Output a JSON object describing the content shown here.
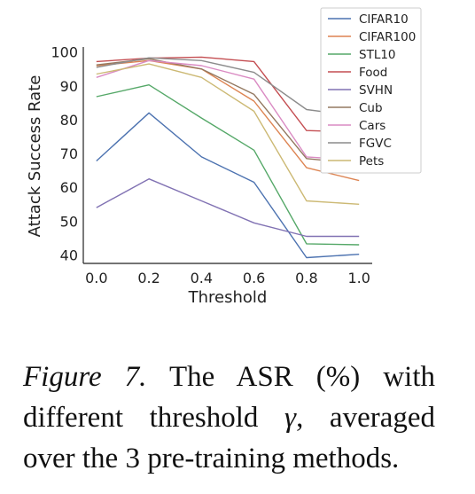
{
  "chart_data": {
    "type": "line",
    "xlabel": "Threshold",
    "ylabel": "Attack Success Rate",
    "x": [
      0.0,
      0.2,
      0.4,
      0.6,
      0.8,
      1.0
    ],
    "xticks": [
      "0.0",
      "0.2",
      "0.4",
      "0.6",
      "0.8",
      "1.0"
    ],
    "yticks": [
      "40",
      "50",
      "60",
      "70",
      "80",
      "90",
      "100"
    ],
    "xlim": [
      -0.05,
      1.05
    ],
    "ylim": [
      37.5,
      101.5
    ],
    "grid": false,
    "legend_position": "top-right",
    "series": [
      {
        "name": "CIFAR10",
        "color": "#4C72B0",
        "values": [
          67.8,
          82.0,
          69.0,
          61.5,
          39.2,
          40.2
        ]
      },
      {
        "name": "CIFAR100",
        "color": "#DD8452",
        "values": [
          96.0,
          97.5,
          95.0,
          85.5,
          65.8,
          62.0
        ]
      },
      {
        "name": "STL10",
        "color": "#55A868",
        "values": [
          86.8,
          90.3,
          80.5,
          71.0,
          43.3,
          43.0
        ]
      },
      {
        "name": "Food",
        "color": "#C44E52",
        "values": [
          97.2,
          98.2,
          98.5,
          97.2,
          76.8,
          76.3
        ]
      },
      {
        "name": "SVHN",
        "color": "#8172B3",
        "values": [
          54.0,
          62.5,
          56.0,
          49.5,
          45.5,
          45.5
        ]
      },
      {
        "name": "Cub",
        "color": "#937860",
        "values": [
          96.2,
          98.0,
          95.0,
          87.5,
          68.5,
          67.0
        ]
      },
      {
        "name": "Cars",
        "color": "#DA8BC3",
        "values": [
          92.5,
          97.5,
          96.0,
          92.0,
          69.0,
          68.0
        ]
      },
      {
        "name": "FGVC",
        "color": "#8C8C8C",
        "values": [
          95.5,
          98.3,
          97.5,
          94.0,
          83.0,
          81.0
        ]
      },
      {
        "name": "Pets",
        "color": "#CCB974",
        "values": [
          93.5,
          96.5,
          92.5,
          82.5,
          56.0,
          55.0
        ]
      }
    ]
  },
  "caption": {
    "figure_label": "Figure 7.",
    "text_before_symbol": "The ASR (%) with different threshold",
    "symbol": "γ",
    "text_after_symbol": ", averaged over the 3 pre-training methods."
  }
}
